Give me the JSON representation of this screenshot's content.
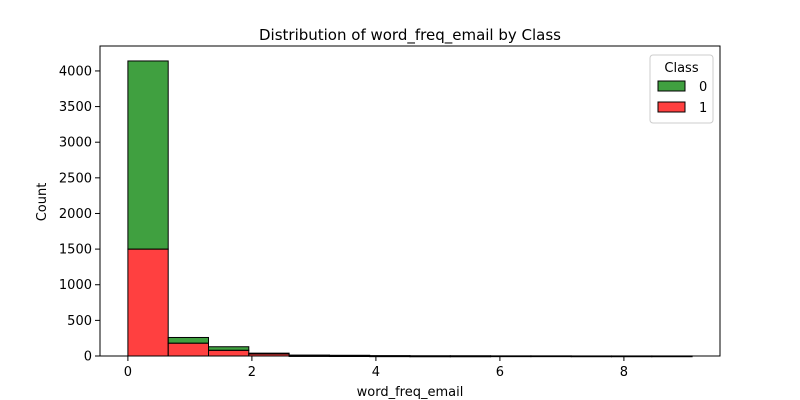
{
  "chart_data": {
    "type": "bar",
    "stacked": true,
    "title": "Distribution of word_freq_email by Class",
    "xlabel": "word_freq_email",
    "ylabel": "Count",
    "xlim": [
      -0.45,
      9.55
    ],
    "ylim": [
      0,
      4350
    ],
    "x_ticks": [
      0,
      2,
      4,
      6,
      8
    ],
    "y_ticks": [
      0,
      500,
      1000,
      1500,
      2000,
      2500,
      3000,
      3500,
      4000
    ],
    "bin_edges": [
      0,
      0.65,
      1.3,
      1.95,
      2.6,
      3.25,
      3.9,
      4.55,
      5.2,
      5.85,
      6.5,
      7.15,
      7.8,
      8.45,
      9.1
    ],
    "legend": {
      "title": "Class",
      "placement": "top-right"
    },
    "series": [
      {
        "name": "1",
        "color": "#ff0000",
        "values": [
          1500,
          180,
          80,
          30,
          5,
          4,
          2,
          1,
          1,
          0,
          0,
          0,
          0,
          0
        ]
      },
      {
        "name": "0",
        "color": "#008000",
        "values": [
          2640,
          80,
          50,
          10,
          8,
          6,
          3,
          2,
          2,
          2,
          2,
          1,
          1,
          1
        ]
      }
    ],
    "legend_order": [
      "0",
      "1"
    ],
    "grid": false
  }
}
